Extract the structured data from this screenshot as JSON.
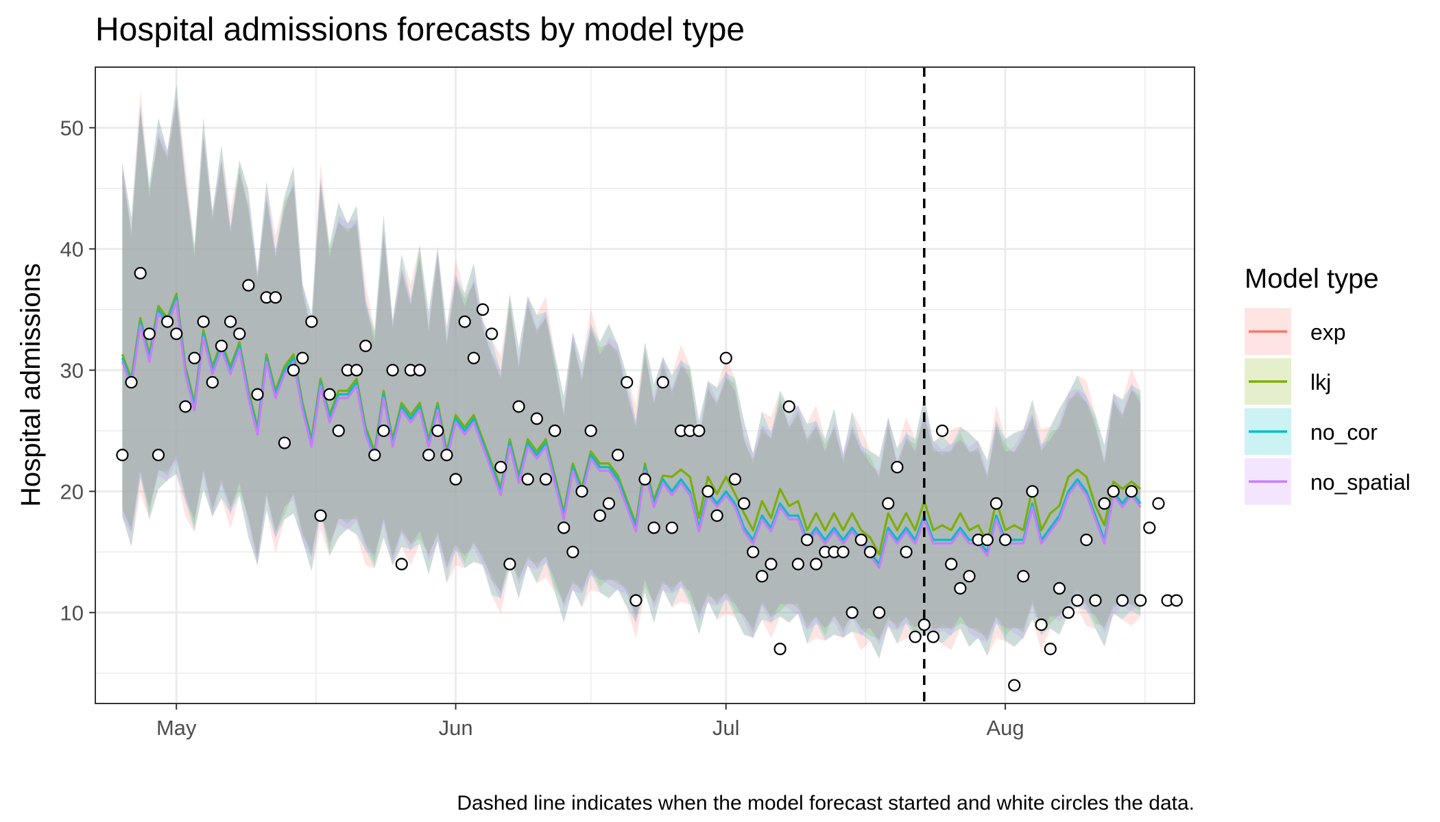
{
  "chart_data": {
    "type": "line",
    "title": "Hospital admissions forecasts by model type",
    "ylabel": "Hospital admissions",
    "xlabel": "",
    "caption": "Dashed line indicates when the model forecast started and white circles the data.",
    "x_range": [
      "2023-04-22",
      "2023-08-22"
    ],
    "ylim": [
      2.5,
      55
    ],
    "y_ticks": [
      10,
      20,
      30,
      40,
      50
    ],
    "x_ticks": [
      {
        "label": "May",
        "date": "2023-05-01"
      },
      {
        "label": "Jun",
        "date": "2023-06-01"
      },
      {
        "label": "Jul",
        "date": "2023-07-01"
      },
      {
        "label": "Aug",
        "date": "2023-08-01"
      }
    ],
    "forecast_start": "2023-07-23",
    "grid": true,
    "legend": {
      "title": "Model type",
      "position": "right"
    },
    "series": [
      {
        "name": "exp",
        "color": "#F8766D"
      },
      {
        "name": "lkj",
        "color": "#7CAE00"
      },
      {
        "name": "no_cor",
        "color": "#00BFC4"
      },
      {
        "name": "no_spatial",
        "color": "#C77CFF"
      }
    ],
    "x_start": "2023-04-25",
    "median": [
      31,
      29,
      34,
      31,
      35,
      34,
      36,
      30,
      27,
      33,
      30,
      32,
      30,
      32,
      28,
      25,
      31,
      28,
      30,
      31,
      27,
      24,
      29,
      26,
      28,
      28,
      29,
      25,
      23,
      28,
      24,
      27,
      26,
      27,
      24,
      27,
      23,
      26,
      25,
      26,
      24,
      22,
      20,
      24,
      21,
      24,
      23,
      24,
      21,
      18,
      22,
      20,
      23,
      22,
      22,
      21,
      19,
      17,
      22,
      19,
      21,
      20,
      21,
      20,
      17,
      20,
      19,
      20,
      19,
      17,
      16,
      18,
      17,
      19,
      18,
      18,
      16,
      17,
      16,
      17,
      16,
      17,
      16,
      15,
      14,
      17,
      16,
      17,
      16,
      18,
      16,
      16,
      16,
      17,
      16,
      16,
      15,
      18,
      16,
      16,
      16,
      19,
      16,
      17,
      18,
      20,
      21,
      20,
      18,
      16,
      20,
      19,
      20,
      19
    ],
    "upper": [
      47,
      42,
      52,
      45,
      50,
      48,
      53,
      46,
      40,
      50,
      43,
      48,
      42,
      47,
      44,
      38,
      45,
      40,
      44,
      46,
      37,
      34,
      46,
      40,
      43,
      42,
      43,
      36,
      33,
      42,
      34,
      39,
      36,
      40,
      34,
      40,
      33,
      38,
      36,
      38,
      34,
      32,
      30,
      36,
      31,
      36,
      34,
      35,
      31,
      27,
      33,
      30,
      34,
      32,
      33,
      32,
      29,
      26,
      32,
      28,
      31,
      29,
      31,
      30,
      25,
      29,
      28,
      30,
      29,
      25,
      23,
      26,
      25,
      28,
      26,
      27,
      25,
      26,
      24,
      26,
      23,
      26,
      24,
      23,
      22,
      26,
      23,
      25,
      24,
      27,
      24,
      24,
      24,
      25,
      24,
      24,
      22,
      26,
      24,
      24,
      25,
      27,
      24,
      25,
      26,
      28,
      29,
      28,
      26,
      23,
      28,
      27,
      29,
      28
    ],
    "lower": [
      18,
      16,
      21,
      18,
      21,
      21,
      22,
      19,
      17,
      21,
      18,
      20,
      18,
      20,
      17,
      14,
      19,
      16,
      18,
      19,
      16,
      14,
      18,
      15,
      17,
      17,
      17,
      15,
      14,
      17,
      14,
      16,
      15,
      16,
      14,
      16,
      13,
      15,
      14,
      15,
      14,
      12,
      11,
      14,
      12,
      14,
      13,
      14,
      12,
      10,
      12,
      11,
      13,
      12,
      12,
      12,
      11,
      9,
      12,
      10,
      12,
      11,
      12,
      11,
      9,
      11,
      10,
      11,
      10,
      9,
      8,
      10,
      9,
      10,
      10,
      10,
      8,
      9,
      8,
      9,
      8,
      9,
      8,
      8,
      7,
      9,
      8,
      9,
      8,
      9,
      8,
      8,
      8,
      9,
      8,
      8,
      7,
      9,
      8,
      8,
      8,
      10,
      8,
      9,
      9,
      10,
      11,
      10,
      9,
      8,
      10,
      10,
      10,
      10
    ],
    "observed": [
      {
        "date": "2023-04-25",
        "y": 23
      },
      {
        "date": "2023-04-26",
        "y": 29
      },
      {
        "date": "2023-04-27",
        "y": 38
      },
      {
        "date": "2023-04-28",
        "y": 33
      },
      {
        "date": "2023-04-29",
        "y": 23
      },
      {
        "date": "2023-04-30",
        "y": 34
      },
      {
        "date": "2023-05-01",
        "y": 33
      },
      {
        "date": "2023-05-02",
        "y": 27
      },
      {
        "date": "2023-05-03",
        "y": 31
      },
      {
        "date": "2023-05-04",
        "y": 34
      },
      {
        "date": "2023-05-05",
        "y": 29
      },
      {
        "date": "2023-05-06",
        "y": 32
      },
      {
        "date": "2023-05-07",
        "y": 34
      },
      {
        "date": "2023-05-08",
        "y": 33
      },
      {
        "date": "2023-05-09",
        "y": 37
      },
      {
        "date": "2023-05-10",
        "y": 28
      },
      {
        "date": "2023-05-11",
        "y": 36
      },
      {
        "date": "2023-05-12",
        "y": 36
      },
      {
        "date": "2023-05-13",
        "y": 24
      },
      {
        "date": "2023-05-14",
        "y": 30
      },
      {
        "date": "2023-05-15",
        "y": 31
      },
      {
        "date": "2023-05-16",
        "y": 34
      },
      {
        "date": "2023-05-17",
        "y": 18
      },
      {
        "date": "2023-05-18",
        "y": 28
      },
      {
        "date": "2023-05-19",
        "y": 25
      },
      {
        "date": "2023-05-20",
        "y": 30
      },
      {
        "date": "2023-05-21",
        "y": 30
      },
      {
        "date": "2023-05-22",
        "y": 32
      },
      {
        "date": "2023-05-23",
        "y": 23
      },
      {
        "date": "2023-05-24",
        "y": 25
      },
      {
        "date": "2023-05-25",
        "y": 30
      },
      {
        "date": "2023-05-26",
        "y": 14
      },
      {
        "date": "2023-05-27",
        "y": 30
      },
      {
        "date": "2023-05-28",
        "y": 30
      },
      {
        "date": "2023-05-29",
        "y": 23
      },
      {
        "date": "2023-05-30",
        "y": 25
      },
      {
        "date": "2023-05-31",
        "y": 23
      },
      {
        "date": "2023-06-01",
        "y": 21
      },
      {
        "date": "2023-06-02",
        "y": 34
      },
      {
        "date": "2023-06-03",
        "y": 31
      },
      {
        "date": "2023-06-04",
        "y": 35
      },
      {
        "date": "2023-06-05",
        "y": 33
      },
      {
        "date": "2023-06-06",
        "y": 22
      },
      {
        "date": "2023-06-07",
        "y": 14
      },
      {
        "date": "2023-06-08",
        "y": 27
      },
      {
        "date": "2023-06-09",
        "y": 21
      },
      {
        "date": "2023-06-10",
        "y": 26
      },
      {
        "date": "2023-06-11",
        "y": 21
      },
      {
        "date": "2023-06-12",
        "y": 25
      },
      {
        "date": "2023-06-13",
        "y": 17
      },
      {
        "date": "2023-06-14",
        "y": 15
      },
      {
        "date": "2023-06-15",
        "y": 20
      },
      {
        "date": "2023-06-16",
        "y": 25
      },
      {
        "date": "2023-06-17",
        "y": 18
      },
      {
        "date": "2023-06-18",
        "y": 19
      },
      {
        "date": "2023-06-19",
        "y": 23
      },
      {
        "date": "2023-06-20",
        "y": 29
      },
      {
        "date": "2023-06-21",
        "y": 11
      },
      {
        "date": "2023-06-22",
        "y": 21
      },
      {
        "date": "2023-06-23",
        "y": 17
      },
      {
        "date": "2023-06-24",
        "y": 29
      },
      {
        "date": "2023-06-25",
        "y": 17
      },
      {
        "date": "2023-06-26",
        "y": 25
      },
      {
        "date": "2023-06-27",
        "y": 25
      },
      {
        "date": "2023-06-28",
        "y": 25
      },
      {
        "date": "2023-06-29",
        "y": 20
      },
      {
        "date": "2023-06-30",
        "y": 18
      },
      {
        "date": "2023-07-01",
        "y": 31
      },
      {
        "date": "2023-07-02",
        "y": 21
      },
      {
        "date": "2023-07-03",
        "y": 19
      },
      {
        "date": "2023-07-04",
        "y": 15
      },
      {
        "date": "2023-07-05",
        "y": 13
      },
      {
        "date": "2023-07-06",
        "y": 14
      },
      {
        "date": "2023-07-07",
        "y": 7
      },
      {
        "date": "2023-07-08",
        "y": 27
      },
      {
        "date": "2023-07-09",
        "y": 14
      },
      {
        "date": "2023-07-10",
        "y": 16
      },
      {
        "date": "2023-07-11",
        "y": 14
      },
      {
        "date": "2023-07-12",
        "y": 15
      },
      {
        "date": "2023-07-13",
        "y": 15
      },
      {
        "date": "2023-07-14",
        "y": 15
      },
      {
        "date": "2023-07-15",
        "y": 10
      },
      {
        "date": "2023-07-16",
        "y": 16
      },
      {
        "date": "2023-07-17",
        "y": 15
      },
      {
        "date": "2023-07-18",
        "y": 10
      },
      {
        "date": "2023-07-19",
        "y": 19
      },
      {
        "date": "2023-07-20",
        "y": 22
      },
      {
        "date": "2023-07-21",
        "y": 15
      },
      {
        "date": "2023-07-22",
        "y": 8
      },
      {
        "date": "2023-07-23",
        "y": 9
      },
      {
        "date": "2023-07-24",
        "y": 8
      },
      {
        "date": "2023-07-25",
        "y": 25
      },
      {
        "date": "2023-07-26",
        "y": 14
      },
      {
        "date": "2023-07-27",
        "y": 12
      },
      {
        "date": "2023-07-28",
        "y": 13
      },
      {
        "date": "2023-07-29",
        "y": 16
      },
      {
        "date": "2023-07-30",
        "y": 16
      },
      {
        "date": "2023-07-31",
        "y": 19
      },
      {
        "date": "2023-08-01",
        "y": 16
      },
      {
        "date": "2023-08-02",
        "y": 4
      },
      {
        "date": "2023-08-03",
        "y": 13
      },
      {
        "date": "2023-08-04",
        "y": 20
      },
      {
        "date": "2023-08-05",
        "y": 9
      },
      {
        "date": "2023-08-06",
        "y": 7
      },
      {
        "date": "2023-08-07",
        "y": 12
      },
      {
        "date": "2023-08-08",
        "y": 10
      },
      {
        "date": "2023-08-09",
        "y": 11
      },
      {
        "date": "2023-08-10",
        "y": 16
      },
      {
        "date": "2023-08-11",
        "y": 11
      },
      {
        "date": "2023-08-12",
        "y": 19
      },
      {
        "date": "2023-08-13",
        "y": 20
      },
      {
        "date": "2023-08-14",
        "y": 11
      },
      {
        "date": "2023-08-15",
        "y": 20
      },
      {
        "date": "2023-08-16",
        "y": 11
      },
      {
        "date": "2023-08-17",
        "y": 17
      },
      {
        "date": "2023-08-18",
        "y": 19
      },
      {
        "date": "2023-08-19",
        "y": 11
      },
      {
        "date": "2023-08-20",
        "y": 11
      }
    ]
  }
}
